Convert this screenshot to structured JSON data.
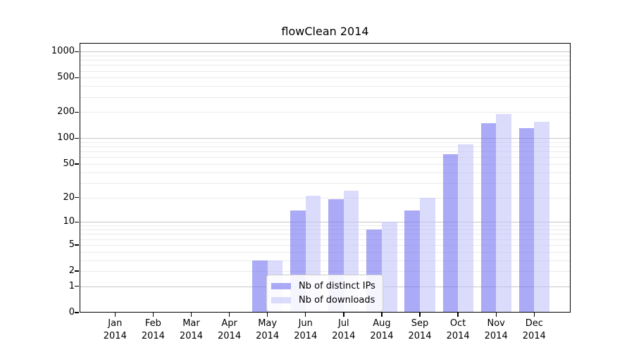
{
  "chart_data": {
    "type": "bar",
    "title": "flowClean 2014",
    "categories": [
      "Jan",
      "Feb",
      "Mar",
      "Apr",
      "May",
      "Jun",
      "Jul",
      "Aug",
      "Sep",
      "Oct",
      "Nov",
      "Dec"
    ],
    "year_label": "2014",
    "series": [
      {
        "name": "Nb of distinct IPs",
        "color": "rgba(118,118,240,0.62)",
        "values": [
          0,
          0,
          0,
          0,
          3,
          14,
          19,
          8,
          14,
          65,
          150,
          130
        ]
      },
      {
        "name": "Nb of downloads",
        "color": "rgba(197,197,248,0.62)",
        "values": [
          0,
          0,
          0,
          0,
          3,
          21,
          24,
          10,
          20,
          85,
          190,
          155
        ]
      }
    ],
    "yscale": "log1p",
    "yticks": [
      0,
      1,
      2,
      5,
      10,
      20,
      50,
      100,
      200,
      500,
      1000
    ],
    "ylim": [
      0,
      1258
    ],
    "xlabel": "",
    "ylabel": "",
    "grid": "on",
    "legend_position": "lower center"
  },
  "colors": {
    "major_grid": "#c6c6c6",
    "minor_grid": "#ebebee",
    "axis": "#000000",
    "background": "#ffffff"
  }
}
